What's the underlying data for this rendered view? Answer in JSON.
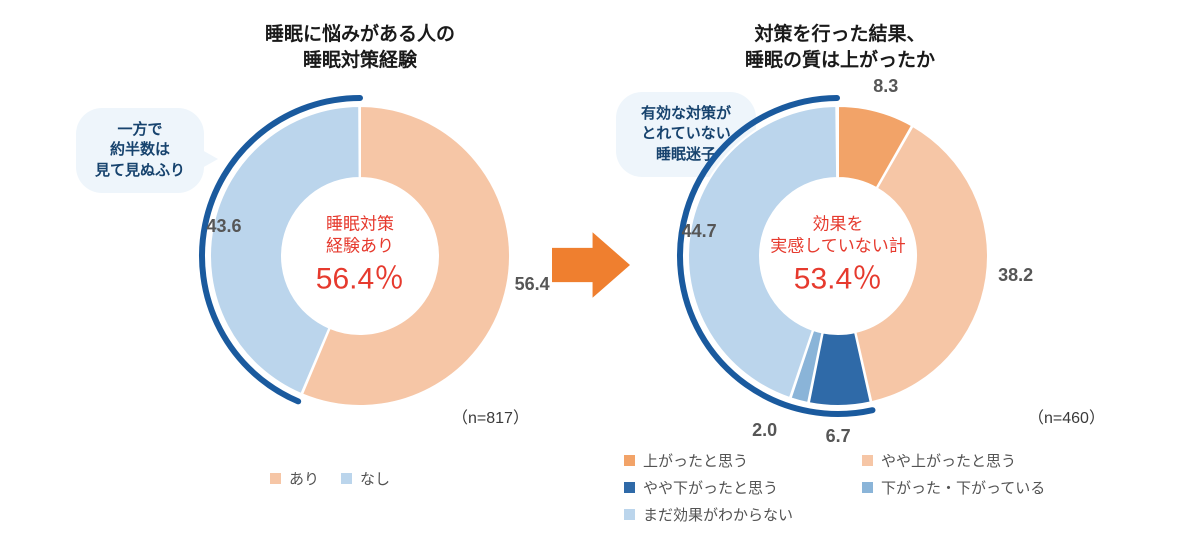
{
  "left_chart": {
    "type": "donut",
    "title_line1": "睡眠に悩みがある人の",
    "title_line2": "睡眠対策経験",
    "n_label": "（n=817）",
    "center_line1": "睡眠対策",
    "center_line2": "経験あり",
    "center_value": "56.4％",
    "bubble_line1": "一方で",
    "bubble_line2": "約半数は",
    "bubble_line3": "見て見ぬふり",
    "slices": [
      {
        "key": "yes",
        "label": "あり",
        "value": 56.4,
        "value_str": "56.4",
        "color": "#f6c6a6"
      },
      {
        "key": "no",
        "label": "なし",
        "value": 43.6,
        "value_str": "43.6",
        "color": "#bbd5ec"
      }
    ],
    "highlight_arc": {
      "start_pct": 56.4,
      "end_pct": 100.0,
      "color": "#1a5a9e",
      "width": 6
    },
    "inner_radius": 78,
    "outer_radius": 150,
    "label_fontsize": 18,
    "center_color": "#e63a2e",
    "background_color": "#ffffff"
  },
  "right_chart": {
    "type": "donut",
    "title_line1": "対策を行った結果、",
    "title_line2": "睡眠の質は上がったか",
    "n_label": "（n=460）",
    "center_line1": "効果を",
    "center_line2": "実感していない計",
    "center_value": "53.4％",
    "bubble_line1": "有効な対策が",
    "bubble_line2": "とれていない",
    "bubble_line3": "睡眠迷子",
    "slices": [
      {
        "key": "up",
        "label": "上がったと思う",
        "value": 8.3,
        "value_str": "8.3",
        "color": "#f2a368"
      },
      {
        "key": "slight_up",
        "label": "やや上がったと思う",
        "value": 38.2,
        "value_str": "38.2",
        "color": "#f6c6a6"
      },
      {
        "key": "slight_down",
        "label": "やや下がったと思う",
        "value": 6.7,
        "value_str": "6.7",
        "color": "#2f6aa8"
      },
      {
        "key": "down",
        "label": "下がった・下がっている",
        "value": 2.0,
        "value_str": "2.0",
        "color": "#8ab4d8"
      },
      {
        "key": "unknown",
        "label": "まだ効果がわからない",
        "value": 44.7,
        "value_str": "44.7",
        "color": "#bbd5ec"
      }
    ],
    "highlight_arc": {
      "start_pct": 46.5,
      "end_pct": 99.9,
      "color": "#1a5a9e",
      "width": 6
    },
    "inner_radius": 78,
    "outer_radius": 150,
    "label_fontsize": 18,
    "center_color": "#e63a2e",
    "background_color": "#ffffff"
  },
  "arrow_color": "#ef7f2f",
  "bubble_bg": "#eef5fb",
  "bubble_text_color": "#17436e"
}
